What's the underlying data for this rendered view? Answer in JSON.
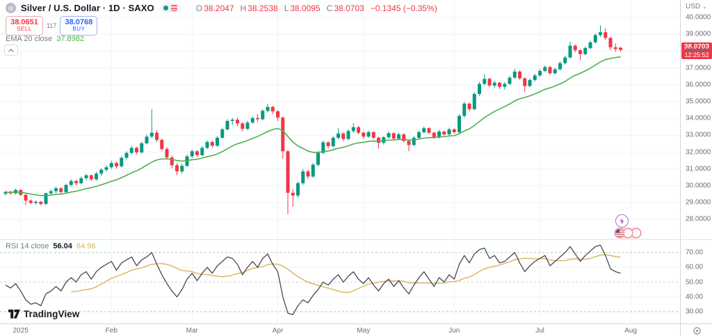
{
  "header": {
    "symbol_title": "Silver / U.S. Dollar · 1D · SAXO",
    "ohlc": {
      "o_label": "O",
      "o": "38.2047",
      "h_label": "H",
      "h": "38.2538",
      "l_label": "L",
      "l": "38.0095",
      "c_label": "C",
      "c": "38.0703",
      "change": "−0.1345 (−0.35%)"
    },
    "sell": {
      "price": "38.0651",
      "label": "SELL"
    },
    "spread": "117",
    "buy": {
      "price": "38.0768",
      "label": "BUY"
    },
    "ema_legend": {
      "text": "EMA 20 close",
      "value": "37.8982"
    }
  },
  "rsi_legend": {
    "text": "RSI 14 close",
    "value": "56.04",
    "ma_value": "64.96"
  },
  "price_axis": {
    "currency": "USD",
    "caret": "⌄",
    "badge": {
      "price": "38.0703",
      "countdown": "12:25:52"
    },
    "ticks": [
      "40.0000",
      "39.0000",
      "38.0000",
      "37.0000",
      "36.0000",
      "35.0000",
      "34.0000",
      "33.0000",
      "32.0000",
      "31.0000",
      "30.0000",
      "29.0000",
      "28.0000"
    ]
  },
  "rsi_axis": {
    "ticks": [
      "70.00",
      "60.00",
      "50.00",
      "40.00",
      "30.00"
    ]
  },
  "time_axis": {
    "labels": [
      "2025",
      "Feb",
      "Mar",
      "Apr",
      "May",
      "Jun",
      "Jul",
      "Aug"
    ],
    "label_bars": [
      3,
      21,
      37,
      54,
      71,
      89,
      106,
      124
    ]
  },
  "attribution": "TradingView",
  "colors": {
    "up": "#089981",
    "down": "#f23645",
    "buy": "#2962ff",
    "ema": "#4caf50",
    "rsi": "#44484f",
    "rsi_ma": "#d9b35b",
    "grid": "#f0f3fa",
    "band_upper": "rgba(76,175,80,0.55)",
    "band_lower": "rgba(242,54,69,0.45)",
    "band_mid": "rgba(120,123,134,0.35)"
  },
  "chart_data": {
    "type": "candlestick",
    "title": "Silver / U.S. Dollar, 1D, SAXO — candlesticks with EMA 20 overlay and RSI 14 sub-pane",
    "price_axis_range": [
      27.8,
      41.0
    ],
    "rsi_axis_range": [
      25,
      80
    ],
    "ema_period": 20,
    "rsi_period": 14,
    "rsi_ma_period": 14,
    "rsi_upper_band": 70,
    "rsi_lower_band": 30,
    "candles": [
      [
        29.52,
        29.7,
        29.41,
        29.62
      ],
      [
        29.62,
        29.72,
        29.45,
        29.55
      ],
      [
        29.55,
        29.82,
        29.5,
        29.75
      ],
      [
        29.75,
        29.8,
        29.38,
        29.46
      ],
      [
        29.46,
        29.52,
        28.86,
        29.12
      ],
      [
        29.12,
        29.2,
        28.9,
        28.98
      ],
      [
        28.98,
        29.12,
        28.88,
        29.05
      ],
      [
        29.05,
        29.1,
        28.82,
        28.92
      ],
      [
        28.92,
        29.6,
        28.85,
        29.55
      ],
      [
        29.55,
        29.78,
        29.42,
        29.68
      ],
      [
        29.68,
        29.95,
        29.55,
        29.85
      ],
      [
        29.85,
        29.92,
        29.52,
        29.62
      ],
      [
        29.62,
        30.12,
        29.58,
        30.05
      ],
      [
        30.05,
        30.38,
        29.95,
        30.28
      ],
      [
        30.28,
        30.35,
        30.02,
        30.15
      ],
      [
        30.15,
        30.55,
        30.08,
        30.45
      ],
      [
        30.45,
        30.72,
        30.32,
        30.62
      ],
      [
        30.62,
        30.68,
        30.28,
        30.38
      ],
      [
        30.38,
        30.82,
        30.3,
        30.72
      ],
      [
        30.72,
        31.05,
        30.6,
        30.95
      ],
      [
        30.95,
        31.22,
        30.82,
        31.1
      ],
      [
        31.1,
        31.48,
        31.0,
        31.35
      ],
      [
        31.35,
        31.42,
        31.02,
        31.15
      ],
      [
        31.15,
        31.75,
        31.08,
        31.66
      ],
      [
        31.66,
        32.05,
        31.55,
        31.95
      ],
      [
        31.95,
        32.38,
        31.85,
        32.25
      ],
      [
        32.25,
        32.32,
        31.85,
        31.98
      ],
      [
        31.98,
        32.62,
        31.9,
        32.52
      ],
      [
        32.52,
        33.05,
        32.45,
        32.92
      ],
      [
        32.92,
        34.55,
        32.82,
        33.15
      ],
      [
        33.15,
        33.3,
        32.6,
        32.72
      ],
      [
        32.72,
        32.8,
        32.05,
        32.18
      ],
      [
        32.18,
        32.3,
        31.55,
        31.68
      ],
      [
        31.68,
        31.8,
        31.05,
        31.22
      ],
      [
        31.22,
        31.35,
        30.62,
        30.85
      ],
      [
        30.85,
        31.3,
        30.72,
        31.18
      ],
      [
        31.18,
        31.85,
        31.1,
        31.75
      ],
      [
        31.75,
        32.15,
        31.65,
        32.05
      ],
      [
        32.05,
        32.12,
        31.7,
        31.82
      ],
      [
        31.82,
        32.35,
        31.75,
        32.25
      ],
      [
        32.25,
        32.7,
        32.18,
        32.6
      ],
      [
        32.6,
        32.68,
        32.25,
        32.38
      ],
      [
        32.38,
        32.95,
        32.3,
        32.85
      ],
      [
        32.85,
        33.45,
        32.78,
        33.35
      ],
      [
        33.35,
        33.95,
        33.28,
        33.85
      ],
      [
        33.85,
        34.02,
        33.62,
        33.92
      ],
      [
        33.92,
        34.05,
        33.55,
        33.7
      ],
      [
        33.7,
        33.78,
        33.22,
        33.38
      ],
      [
        33.38,
        33.85,
        33.3,
        33.75
      ],
      [
        33.75,
        34.12,
        33.68,
        34.02
      ],
      [
        34.02,
        34.25,
        33.8,
        33.95
      ],
      [
        33.95,
        34.55,
        33.88,
        34.45
      ],
      [
        34.45,
        34.87,
        34.35,
        34.68
      ],
      [
        34.68,
        34.75,
        34.25,
        34.42
      ],
      [
        34.42,
        34.5,
        33.85,
        34.05
      ],
      [
        34.05,
        34.12,
        31.6,
        32.05
      ],
      [
        32.05,
        32.12,
        28.31,
        29.58
      ],
      [
        29.58,
        29.8,
        28.75,
        29.42
      ],
      [
        29.42,
        30.25,
        29.3,
        30.15
      ],
      [
        30.15,
        31.0,
        30.05,
        30.85
      ],
      [
        30.85,
        30.95,
        30.4,
        30.55
      ],
      [
        30.55,
        31.35,
        30.48,
        31.25
      ],
      [
        31.25,
        32.05,
        31.15,
        31.95
      ],
      [
        31.95,
        32.68,
        31.88,
        32.58
      ],
      [
        32.58,
        32.65,
        32.2,
        32.35
      ],
      [
        32.35,
        32.95,
        32.28,
        32.85
      ],
      [
        32.85,
        33.42,
        32.78,
        33.1
      ],
      [
        33.1,
        33.18,
        32.65,
        32.78
      ],
      [
        32.78,
        33.35,
        32.7,
        33.25
      ],
      [
        33.25,
        33.72,
        33.15,
        33.48
      ],
      [
        33.48,
        33.55,
        33.05,
        33.15
      ],
      [
        33.15,
        33.22,
        32.78,
        32.92
      ],
      [
        32.92,
        33.28,
        32.85,
        33.18
      ],
      [
        33.18,
        33.25,
        32.75,
        32.85
      ],
      [
        32.85,
        32.92,
        32.2,
        32.55
      ],
      [
        32.55,
        32.95,
        32.45,
        32.88
      ],
      [
        32.88,
        33.22,
        32.8,
        33.12
      ],
      [
        33.12,
        33.18,
        32.7,
        32.8
      ],
      [
        32.8,
        33.15,
        32.72,
        33.05
      ],
      [
        33.05,
        33.12,
        32.58,
        32.66
      ],
      [
        32.66,
        32.72,
        32.05,
        32.42
      ],
      [
        32.42,
        32.95,
        32.35,
        32.85
      ],
      [
        32.85,
        33.28,
        32.78,
        33.18
      ],
      [
        33.18,
        33.52,
        33.1,
        33.42
      ],
      [
        33.42,
        33.48,
        33.05,
        33.15
      ],
      [
        33.15,
        33.22,
        32.78,
        32.88
      ],
      [
        32.88,
        33.32,
        32.8,
        33.22
      ],
      [
        33.22,
        33.28,
        32.95,
        33.05
      ],
      [
        33.05,
        33.45,
        32.98,
        33.35
      ],
      [
        33.35,
        33.42,
        33.08,
        33.18
      ],
      [
        33.18,
        34.25,
        33.1,
        34.15
      ],
      [
        34.15,
        34.98,
        34.05,
        34.88
      ],
      [
        34.88,
        34.95,
        34.42,
        34.55
      ],
      [
        34.55,
        35.55,
        34.48,
        35.45
      ],
      [
        35.45,
        36.15,
        35.35,
        36.05
      ],
      [
        36.05,
        36.62,
        35.95,
        36.35
      ],
      [
        36.35,
        36.42,
        35.85,
        35.95
      ],
      [
        35.95,
        36.25,
        35.82,
        36.12
      ],
      [
        36.12,
        36.18,
        35.75,
        35.88
      ],
      [
        35.88,
        36.15,
        35.72,
        36.05
      ],
      [
        36.05,
        36.52,
        35.98,
        36.42
      ],
      [
        36.42,
        36.95,
        36.35,
        36.78
      ],
      [
        36.78,
        36.85,
        36.28,
        36.38
      ],
      [
        36.38,
        36.45,
        35.55,
        35.92
      ],
      [
        35.92,
        36.38,
        35.85,
        36.28
      ],
      [
        36.28,
        36.65,
        36.2,
        36.55
      ],
      [
        36.55,
        36.92,
        36.48,
        36.82
      ],
      [
        36.82,
        37.15,
        36.75,
        37.05
      ],
      [
        37.05,
        37.12,
        36.58,
        36.68
      ],
      [
        36.68,
        37.02,
        36.6,
        36.92
      ],
      [
        36.92,
        37.38,
        36.85,
        37.28
      ],
      [
        37.28,
        37.72,
        37.2,
        37.62
      ],
      [
        37.62,
        38.55,
        37.55,
        38.32
      ],
      [
        38.32,
        38.4,
        37.92,
        38.05
      ],
      [
        38.05,
        38.12,
        37.48,
        37.82
      ],
      [
        37.82,
        38.28,
        37.75,
        38.18
      ],
      [
        38.18,
        38.62,
        38.1,
        38.52
      ],
      [
        38.52,
        39.05,
        38.45,
        38.95
      ],
      [
        38.95,
        39.52,
        38.85,
        39.12
      ],
      [
        39.12,
        39.35,
        38.65,
        38.78
      ],
      [
        38.78,
        38.85,
        38.05,
        38.22
      ],
      [
        38.22,
        38.45,
        37.95,
        38.12
      ],
      [
        38.2,
        38.25,
        37.95,
        38.07
      ]
    ],
    "rsi": [
      48,
      46,
      49,
      44,
      38,
      35,
      36,
      34,
      42,
      44,
      47,
      44,
      50,
      53,
      50,
      55,
      57,
      52,
      57,
      60,
      62,
      64,
      58,
      63,
      65,
      67,
      61,
      65,
      67,
      70,
      62,
      55,
      49,
      44,
      40,
      45,
      52,
      56,
      51,
      56,
      60,
      56,
      61,
      64,
      67,
      66,
      62,
      55,
      60,
      64,
      60,
      66,
      69,
      62,
      57,
      40,
      29,
      28,
      34,
      38,
      36,
      41,
      45,
      50,
      48,
      52,
      55,
      50,
      54,
      57,
      52,
      49,
      53,
      48,
      44,
      49,
      52,
      47,
      51,
      46,
      42,
      48,
      53,
      57,
      52,
      47,
      53,
      50,
      55,
      52,
      62,
      68,
      63,
      69,
      72,
      73,
      66,
      68,
      63,
      64,
      67,
      70,
      63,
      57,
      61,
      64,
      66,
      68,
      61,
      64,
      67,
      70,
      74,
      69,
      64,
      68,
      71,
      74,
      75,
      68,
      59,
      57,
      56.04
    ]
  }
}
